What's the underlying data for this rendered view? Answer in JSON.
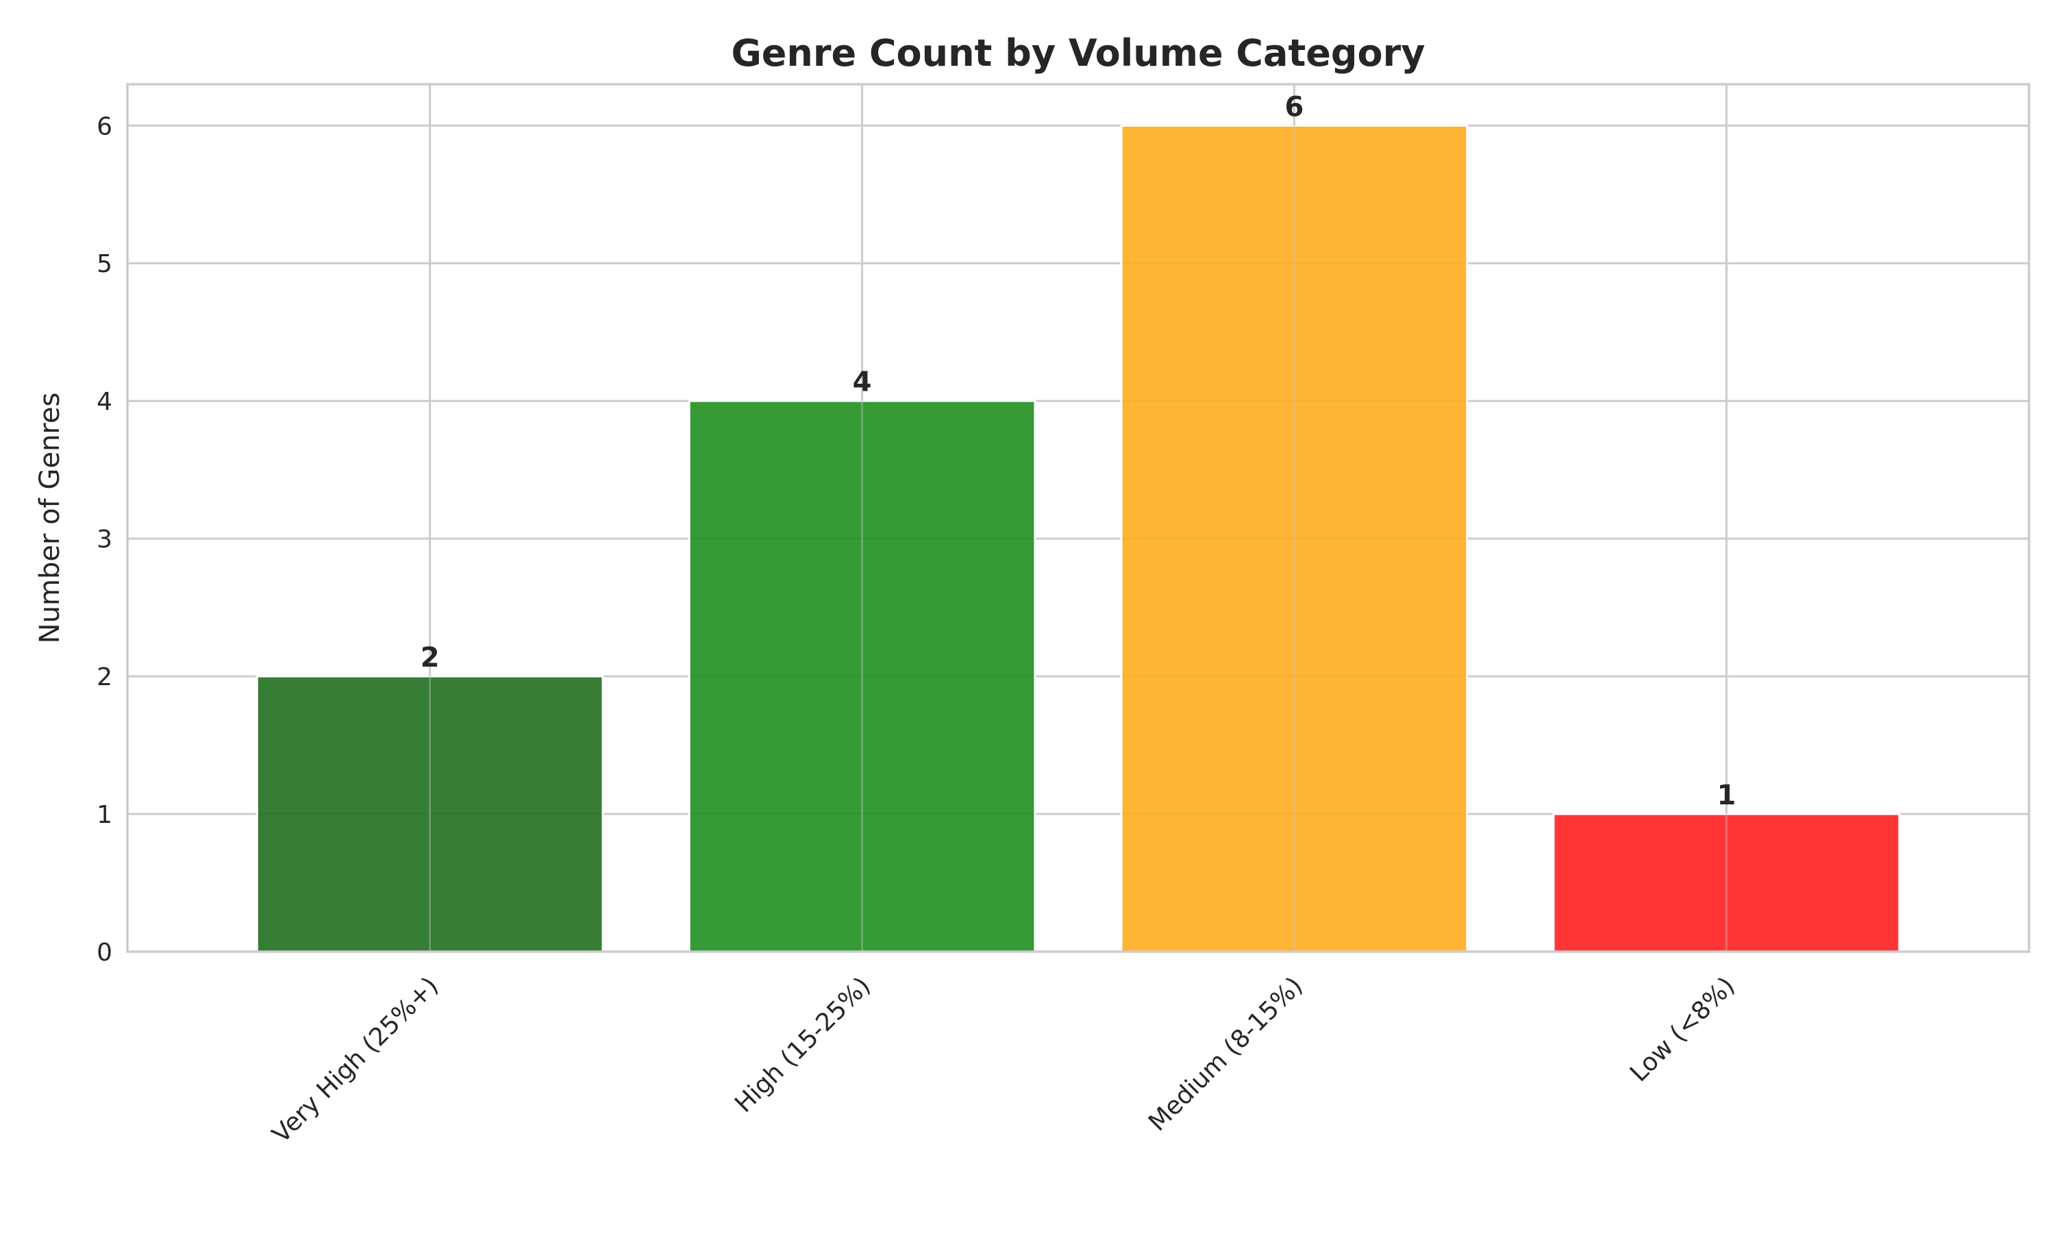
{
  "chart_data": {
    "type": "bar",
    "title": "Genre Count by Volume Category",
    "xlabel": "",
    "ylabel": "Number of Genres",
    "categories": [
      "Very High (25%+)",
      "High (15-25%)",
      "Medium (8-15%)",
      "Low (<8%)"
    ],
    "values": [
      2,
      4,
      6,
      1
    ],
    "data_labels": [
      "2",
      "4",
      "6",
      "1"
    ],
    "bar_colors": [
      "#1a6b1a",
      "#1a8c1a",
      "#ffaa1a",
      "#ff1a1a"
    ],
    "ylim": [
      0,
      6.3
    ],
    "yticks": [
      0,
      1,
      2,
      3,
      4,
      5,
      6
    ],
    "ytick_labels": [
      "0",
      "1",
      "2",
      "3",
      "4",
      "5",
      "6"
    ],
    "grid": true,
    "legend": "none",
    "xtick_rotation": "45 degrees"
  }
}
